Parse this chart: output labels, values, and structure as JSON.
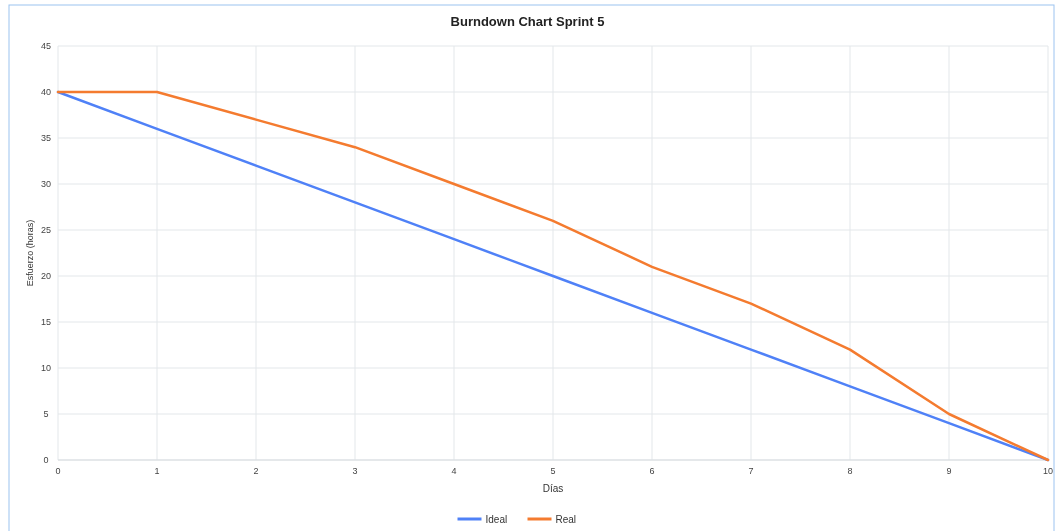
{
  "chart_data": {
    "type": "line",
    "title": "Burndown Chart Sprint 5",
    "xlabel": "Días",
    "ylabel": "Esfuerzo (horas)",
    "x": [
      0,
      1,
      2,
      3,
      4,
      5,
      6,
      7,
      8,
      9,
      10
    ],
    "series": [
      {
        "name": "Ideal",
        "color": "#4f81f7",
        "values": [
          40,
          36,
          32,
          28,
          24,
          20,
          16,
          12,
          8,
          4,
          0
        ]
      },
      {
        "name": "Real",
        "color": "#f47b2f",
        "values": [
          40,
          40,
          37,
          34,
          30,
          26,
          21,
          17,
          12,
          5,
          0
        ]
      }
    ],
    "xlim": [
      0,
      10
    ],
    "xticks": [
      0,
      1,
      2,
      3,
      4,
      5,
      6,
      7,
      8,
      9,
      10
    ],
    "ylim": [
      0,
      45
    ],
    "yticks": [
      0,
      5,
      10,
      15,
      20,
      25,
      30,
      35,
      40,
      45
    ],
    "grid": true,
    "legend": "bottom",
    "marker": "none",
    "line_style": "solid"
  }
}
